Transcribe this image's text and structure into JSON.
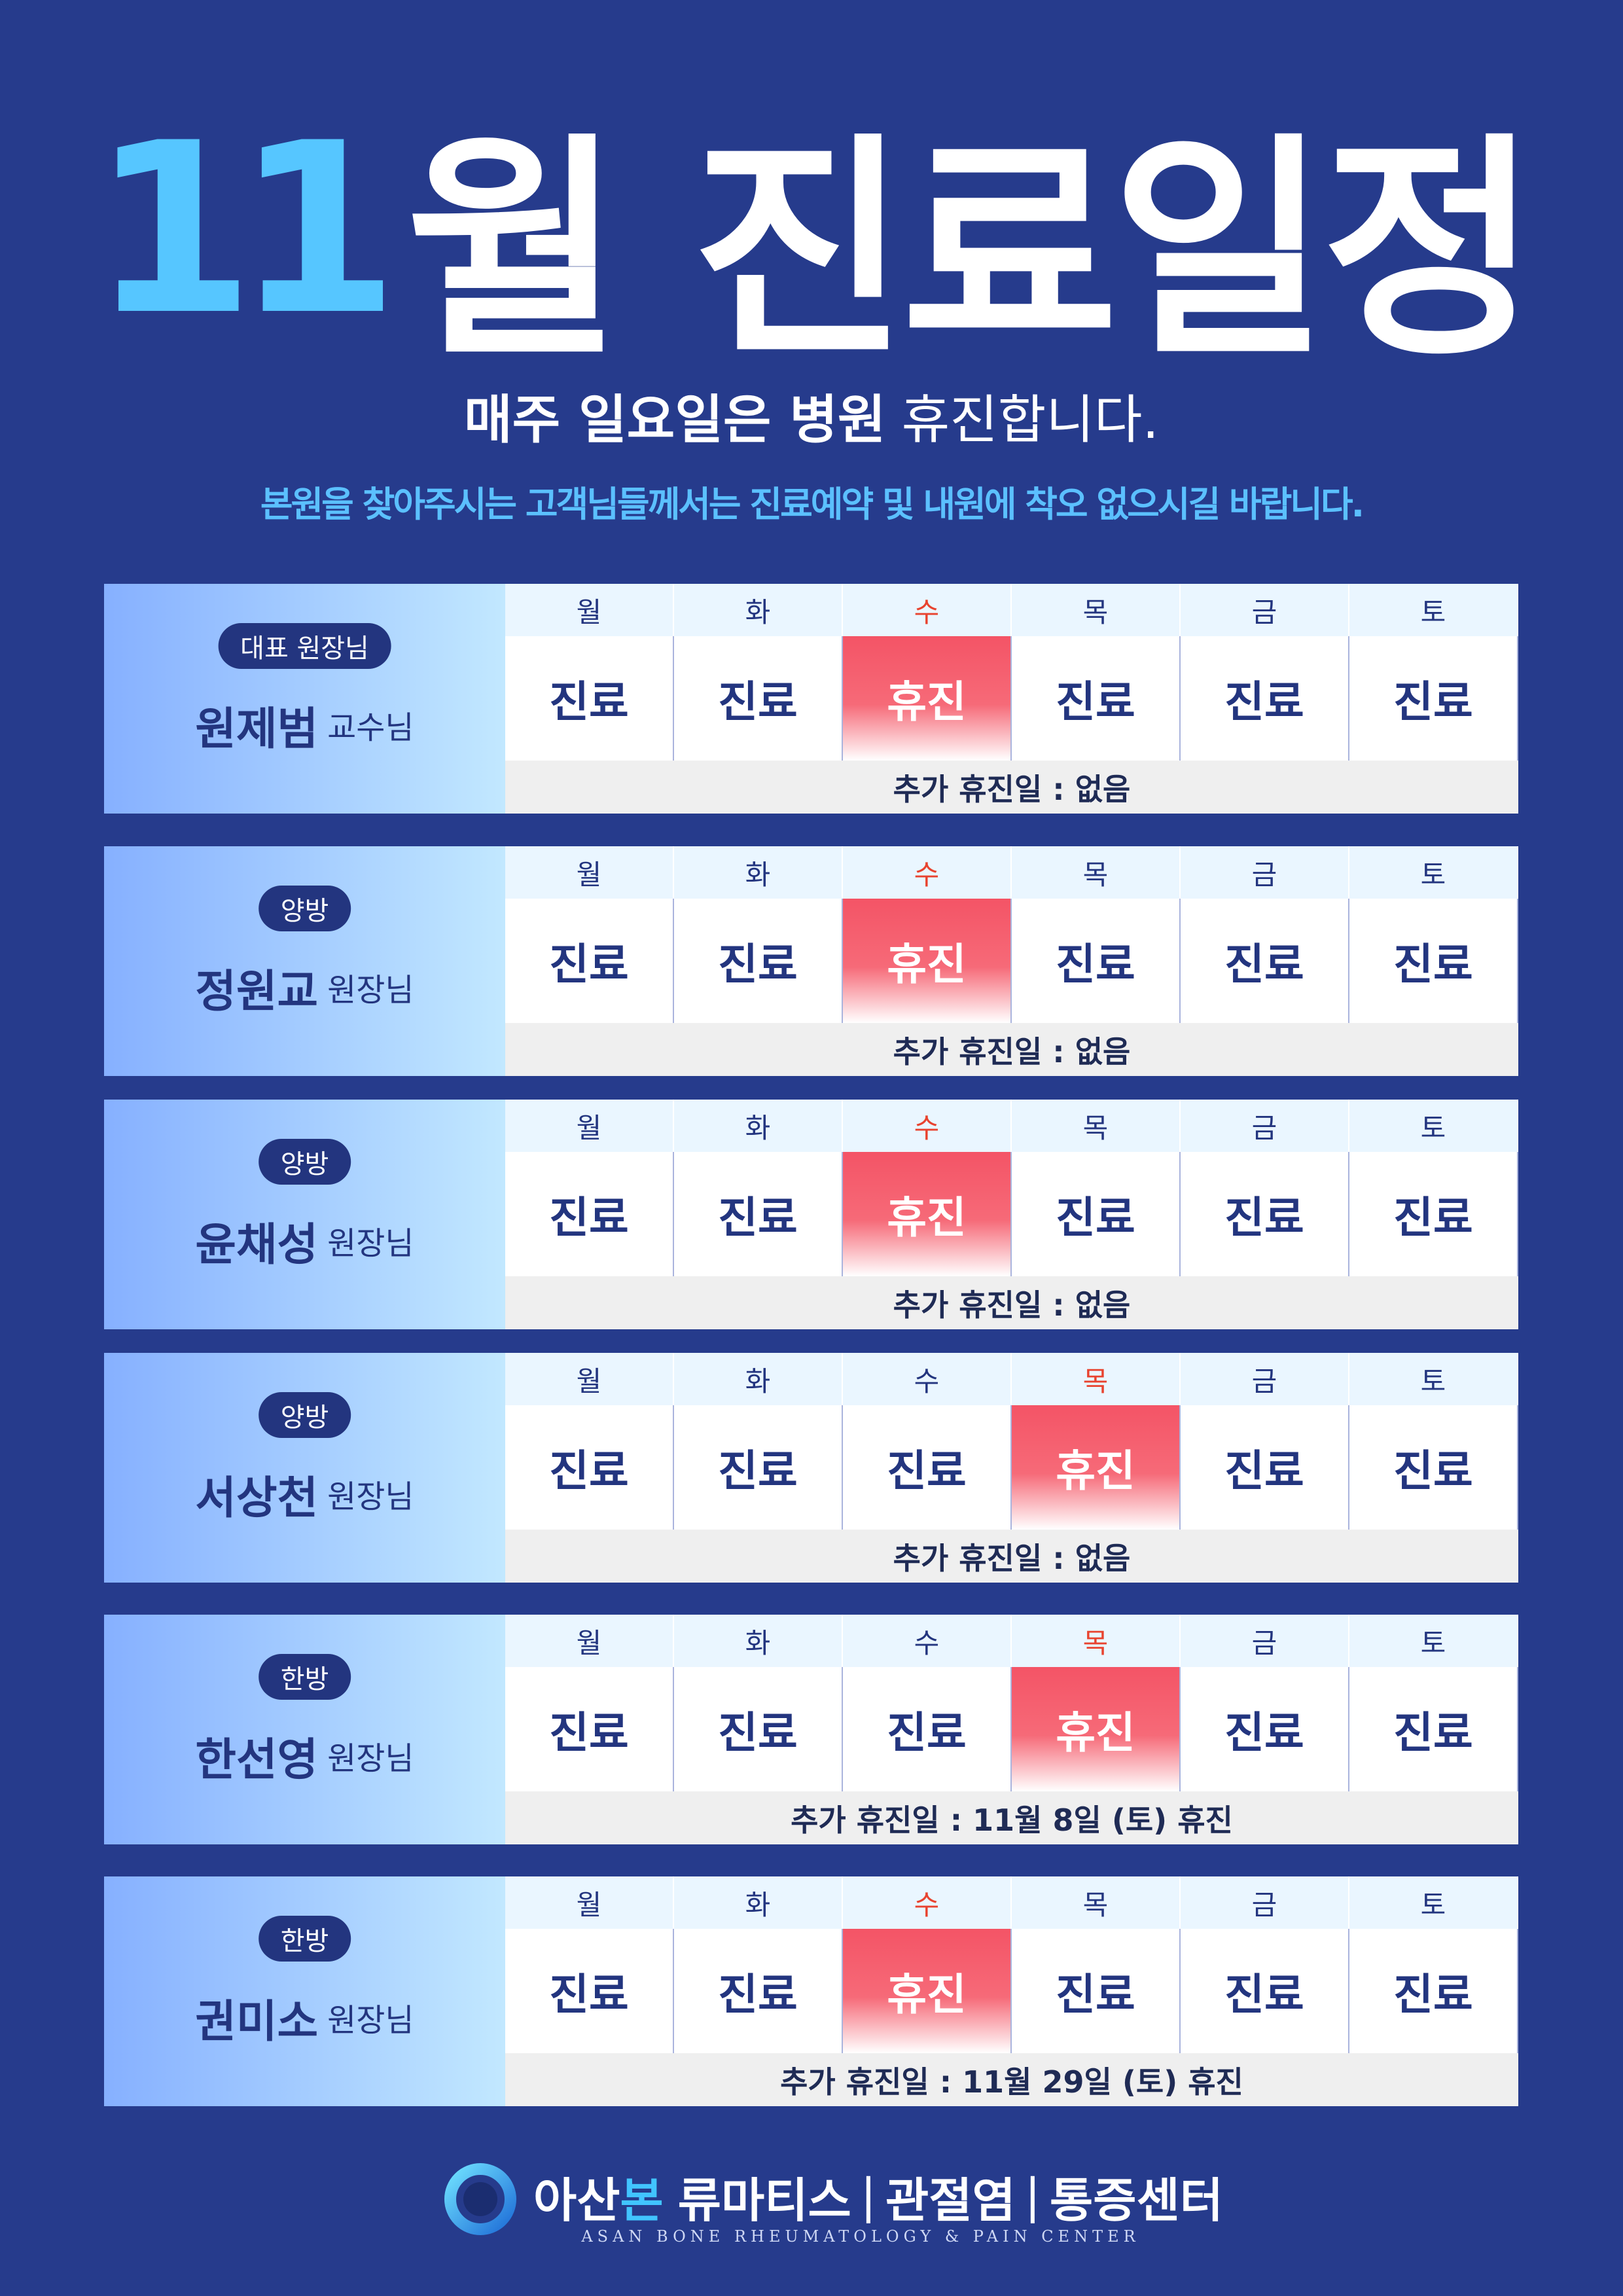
{
  "header": {
    "title_number": "11",
    "title_text": "월 진료일정",
    "subtitle_bold": "매주 일요일은 병원",
    "subtitle_regular": "휴진합니다.",
    "notice": "본원을 찾아주시는 고객님들께서는 진료예약 및 내원에 착오 없으시길 바랍니다."
  },
  "days": [
    "월",
    "화",
    "수",
    "목",
    "금",
    "토"
  ],
  "doctors": [
    {
      "badge": "대표 원장님",
      "name": "원제범",
      "title": "교수님",
      "schedule": [
        "진료",
        "진료",
        "휴진",
        "진료",
        "진료",
        "진료"
      ],
      "extra": "추가 휴진일 : 없음"
    },
    {
      "badge": "양방",
      "name": "정원교",
      "title": "원장님",
      "schedule": [
        "진료",
        "진료",
        "휴진",
        "진료",
        "진료",
        "진료"
      ],
      "extra": "추가 휴진일 : 없음"
    },
    {
      "badge": "양방",
      "name": "윤채성",
      "title": "원장님",
      "schedule": [
        "진료",
        "진료",
        "휴진",
        "진료",
        "진료",
        "진료"
      ],
      "extra": "추가 휴진일 : 없음"
    },
    {
      "badge": "양방",
      "name": "서상천",
      "title": "원장님",
      "schedule": [
        "진료",
        "진료",
        "진료",
        "휴진",
        "진료",
        "진료"
      ],
      "extra": "추가 휴진일 : 없음"
    },
    {
      "badge": "한방",
      "name": "한선영",
      "title": "원장님",
      "schedule": [
        "진료",
        "진료",
        "진료",
        "휴진",
        "진료",
        "진료"
      ],
      "extra": "추가 휴진일 : 11월 8일 (토) 휴진"
    },
    {
      "badge": "한방",
      "name": "권미소",
      "title": "원장님",
      "schedule": [
        "진료",
        "진료",
        "휴진",
        "진료",
        "진료",
        "진료"
      ],
      "extra": "추가 휴진일 : 11월 29일 (토) 휴진"
    }
  ],
  "footer": {
    "brand_a": "아산",
    "brand_b": "본",
    "parts": [
      "류마티스",
      "관절염",
      "통증센터"
    ],
    "english": "ASAN BONE RHEUMATOLOGY & PAIN CENTER"
  }
}
